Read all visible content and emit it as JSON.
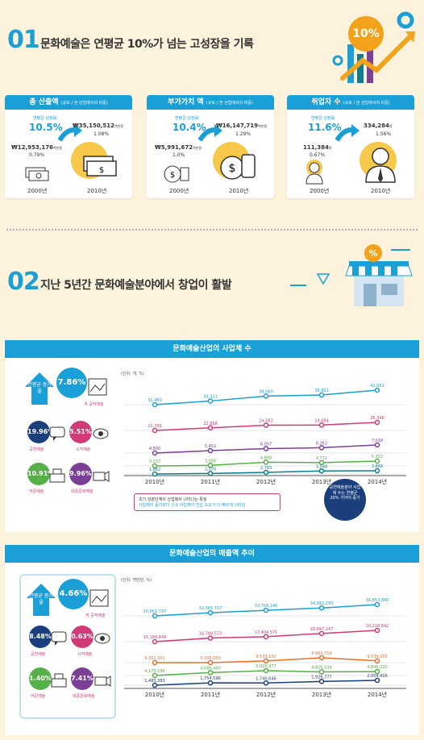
{
  "section1": {
    "num": "01",
    "title": "문화예술은 연평균 10%가 넘는 고성장을 기록",
    "badge": "10%",
    "cards": [
      {
        "title": "총 산출액",
        "sub": "(규모 / 전 산업에서의 비중)",
        "rate_label": "연평균 성장률",
        "rate": "10.5%",
        "v2000": "₩12,953,176",
        "v2000_unit": "백만원",
        "p2000": "0.79%",
        "v2010": "₩35,150,512",
        "v2010_unit": "백만원",
        "p2010": "1.08%",
        "y1": "2000년",
        "y2": "2010년"
      },
      {
        "title": "부가가치 액",
        "sub": "(규모 / 전 산업에서의 비중)",
        "rate_label": "연평균 성장률",
        "rate": "10.4%",
        "v2000": "₩5,991,672",
        "v2000_unit": "백만원",
        "p2000": "1.0%",
        "v2010": "₩16,147,719",
        "v2010_unit": "백만원",
        "p2010": "1.29%",
        "y1": "2000년",
        "y2": "2010년"
      },
      {
        "title": "취업자 수",
        "sub": "(규모 / 전 산업에서의 비중)",
        "rate_label": "연평균 성장률",
        "rate": "11.6%",
        "v2000": "111,384",
        "v2000_unit": "명",
        "p2000": "0.67%",
        "v2010": "334,284",
        "v2010_unit": "명",
        "p2010": "1.56%",
        "y1": "2000년",
        "y2": "2010년"
      }
    ]
  },
  "section2": {
    "num": "02",
    "title": "지난 5년간 문화예술분야에서 창업이 활발"
  },
  "legend": {
    "rate_label": "연평균 증가율",
    "cat_fine": "게 공작예술",
    "cat_perf": "공연예술",
    "cat_visual": "시각예술",
    "cat_lit": "어문예술",
    "cat_mass": "대중문화예술"
  },
  "chart_data": [
    {
      "type": "line",
      "title": "문화예술산업의 사업체 수",
      "unit": "(단위: 개, %)",
      "x": [
        "2010년",
        "2011년",
        "2012년",
        "2013년",
        "2014년"
      ],
      "series": [
        {
          "color": "#1a9fd6",
          "values": [
            31480,
            34311,
            38060,
            38901,
            42651
          ]
        },
        {
          "color": "#d03a76",
          "values": [
            21256,
            22898,
            24582,
            24684,
            26346
          ]
        },
        {
          "color": "#7b3f98",
          "values": [
            4800,
            5452,
            6007,
            6262,
            7018
          ]
        },
        {
          "color": "#55b04a",
          "values": [
            3337,
            3580,
            4888,
            4731,
            5352
          ]
        },
        {
          "color": "#0d7d8f",
          "values": [
            1862,
            2170,
            2783,
            3548,
            3666
          ]
        }
      ],
      "rates": {
        "fine": "7.86%",
        "perf": "19.96%",
        "visual": "5.51%",
        "lit": "10.91%",
        "mass": "9.96%"
      },
      "note_title": "초기 성장단계의 산업에서 나타나는 특징",
      "note_sub": "사업체의 증가보다 신규 사업체의 진입 속도가 더 빠르게 나타남",
      "badge": "공연예술분야 사업체 수는 연평균 20% 가까이 증가"
    },
    {
      "type": "line",
      "title": "문화예술산업의 매출액 추이",
      "unit": "(단위: 백만원, %)",
      "x": [
        "2010년",
        "2011년",
        "2012년",
        "2013년",
        "2014년"
      ],
      "series": [
        {
          "color": "#1a9fd6",
          "values": [
            30662737,
            32365717,
            33704146,
            34992293,
            36853880
          ]
        },
        {
          "color": "#d03a76",
          "values": [
            15189849,
            16788573,
            17404571,
            18847247,
            20218842
          ]
        },
        {
          "color": "#e8702a",
          "values": [
            9301301,
            9295063,
            9533152,
            9960719,
            9539200
          ]
        },
        {
          "color": "#55b04a",
          "values": [
            4178596,
            4686460,
            5005977,
            4805534,
            4846320
          ]
        },
        {
          "color": "#1b3f7d",
          "values": [
            1483383,
            1754596,
            1740646,
            1926777,
            2054416
          ]
        }
      ],
      "rates": {
        "fine": "4.66%",
        "perf": "8.48%",
        "visual": "0.63%",
        "lit": "1.40%",
        "mass": "7.41%"
      }
    }
  ]
}
